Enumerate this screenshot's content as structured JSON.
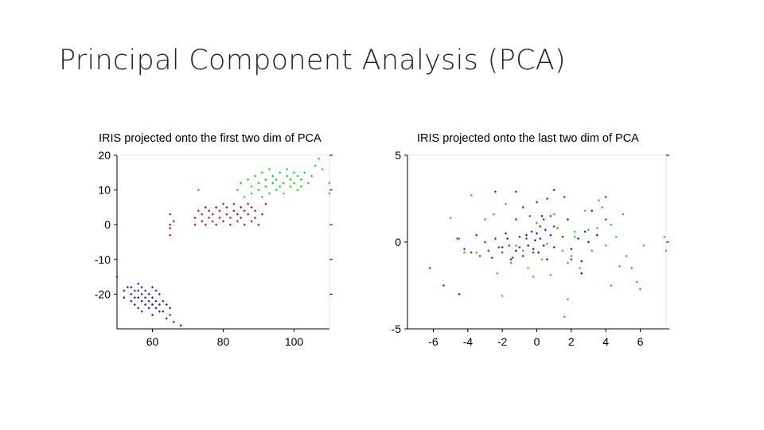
{
  "slide": {
    "title": "Principal Component Analysis (PCA)"
  },
  "colors": {
    "series_blue": "#1f1faa",
    "series_red": "#b41a1a",
    "series_green": "#22cc22",
    "axis": "#000000"
  },
  "chart_data": [
    {
      "type": "scatter",
      "title": "IRIS projected onto the first two dim of PCA",
      "xlabel": "",
      "ylabel": "",
      "xlim": [
        50,
        110
      ],
      "ylim": [
        -30,
        20
      ],
      "xticks": [
        60,
        80,
        100
      ],
      "yticks": [
        20,
        10,
        0,
        -10,
        -20
      ],
      "grid": false,
      "series": [
        {
          "color": "#1f1faa",
          "points": [
            [
              50,
              -15
            ],
            [
              52,
              -19
            ],
            [
              52,
              -21
            ],
            [
              53,
              -18
            ],
            [
              54,
              -18
            ],
            [
              54,
              -20
            ],
            [
              54,
              -22
            ],
            [
              55,
              -21
            ],
            [
              55,
              -19
            ],
            [
              55,
              -23
            ],
            [
              56,
              -17
            ],
            [
              56,
              -19
            ],
            [
              56,
              -21
            ],
            [
              56,
              -24
            ],
            [
              57,
              -18
            ],
            [
              57,
              -20
            ],
            [
              57,
              -22
            ],
            [
              57,
              -25
            ],
            [
              58,
              -19
            ],
            [
              58,
              -21
            ],
            [
              58,
              -23
            ],
            [
              59,
              -20
            ],
            [
              59,
              -22
            ],
            [
              59,
              -24
            ],
            [
              60,
              -18
            ],
            [
              60,
              -21
            ],
            [
              60,
              -23
            ],
            [
              60,
              -26
            ],
            [
              61,
              -19
            ],
            [
              61,
              -22
            ],
            [
              61,
              -24
            ],
            [
              62,
              -20
            ],
            [
              62,
              -23
            ],
            [
              62,
              -25
            ],
            [
              63,
              -22
            ],
            [
              63,
              -25
            ],
            [
              64,
              -23
            ],
            [
              64,
              -27
            ],
            [
              65,
              -24
            ],
            [
              65,
              -26
            ],
            [
              66,
              -28
            ],
            [
              68,
              -29
            ]
          ]
        },
        {
          "color": "#b41a1a",
          "points": [
            [
              65,
              3
            ],
            [
              65,
              0
            ],
            [
              65,
              -1
            ],
            [
              65,
              -3
            ],
            [
              66,
              1
            ],
            [
              72,
              0
            ],
            [
              72,
              2
            ],
            [
              73,
              4
            ],
            [
              74,
              1
            ],
            [
              74,
              3
            ],
            [
              75,
              5
            ],
            [
              75,
              0
            ],
            [
              76,
              2
            ],
            [
              76,
              4
            ],
            [
              77,
              1
            ],
            [
              77,
              3
            ],
            [
              78,
              5
            ],
            [
              78,
              0
            ],
            [
              79,
              2
            ],
            [
              79,
              4
            ],
            [
              80,
              6
            ],
            [
              80,
              1
            ],
            [
              81,
              3
            ],
            [
              81,
              5
            ],
            [
              82,
              2
            ],
            [
              82,
              0
            ],
            [
              83,
              4
            ],
            [
              83,
              6
            ],
            [
              84,
              1
            ],
            [
              84,
              3
            ],
            [
              85,
              5
            ],
            [
              85,
              2
            ],
            [
              86,
              4
            ],
            [
              86,
              0
            ],
            [
              87,
              3
            ],
            [
              87,
              6
            ],
            [
              88,
              1
            ],
            [
              88,
              5
            ],
            [
              89,
              2
            ],
            [
              89,
              4
            ],
            [
              90,
              0
            ],
            [
              91,
              3
            ],
            [
              92,
              6
            ]
          ]
        },
        {
          "color": "#22cc22",
          "points": [
            [
              73,
              10
            ],
            [
              84,
              10
            ],
            [
              85,
              12
            ],
            [
              86,
              8
            ],
            [
              87,
              13
            ],
            [
              88,
              9
            ],
            [
              88,
              11
            ],
            [
              89,
              14
            ],
            [
              90,
              10
            ],
            [
              90,
              12
            ],
            [
              91,
              8
            ],
            [
              91,
              15
            ],
            [
              92,
              11
            ],
            [
              92,
              13
            ],
            [
              93,
              9
            ],
            [
              93,
              16
            ],
            [
              94,
              12
            ],
            [
              94,
              14
            ],
            [
              95,
              10
            ],
            [
              95,
              13
            ],
            [
              96,
              15
            ],
            [
              96,
              11
            ],
            [
              97,
              12
            ],
            [
              97,
              9
            ],
            [
              98,
              14
            ],
            [
              98,
              16
            ],
            [
              99,
              11
            ],
            [
              99,
              13
            ],
            [
              100,
              15
            ],
            [
              100,
              12
            ],
            [
              101,
              10
            ],
            [
              101,
              14
            ],
            [
              102,
              13
            ],
            [
              102,
              11
            ],
            [
              103,
              15
            ],
            [
              104,
              12
            ],
            [
              105,
              14
            ],
            [
              106,
              17
            ],
            [
              107,
              19
            ],
            [
              108,
              16
            ],
            [
              110,
              12
            ],
            [
              110,
              9
            ]
          ]
        }
      ]
    },
    {
      "type": "scatter",
      "title": "IRIS projected onto the last two dim of PCA",
      "xlabel": "",
      "ylabel": "",
      "xlim": [
        -7.5,
        7.5
      ],
      "ylim": [
        -5,
        5
      ],
      "xticks": [
        -6,
        -4,
        -2,
        0,
        2,
        4,
        6
      ],
      "yticks": [
        5,
        0,
        -5
      ],
      "grid": false,
      "series": [
        {
          "color": "#1f1faa",
          "points": [
            [
              -4.5,
              -3.0
            ],
            [
              -2.0,
              -0.3
            ],
            [
              -1.7,
              0.2
            ],
            [
              -1.5,
              -1.0
            ],
            [
              -1.2,
              -0.5
            ],
            [
              -1.0,
              0.3
            ],
            [
              -0.8,
              -0.8
            ],
            [
              -0.6,
              0.4
            ],
            [
              -0.5,
              -0.2
            ],
            [
              -0.3,
              0.6
            ],
            [
              -0.2,
              -0.4
            ],
            [
              -0.1,
              0.1
            ],
            [
              0.0,
              0.5
            ],
            [
              0.1,
              -0.6
            ],
            [
              0.2,
              0.2
            ],
            [
              0.3,
              1.5
            ],
            [
              0.4,
              -0.2
            ],
            [
              0.5,
              0.7
            ],
            [
              0.6,
              -1.0
            ],
            [
              0.8,
              0.4
            ],
            [
              1.0,
              -0.3
            ],
            [
              1.2,
              0.8
            ],
            [
              1.5,
              0.3
            ],
            [
              1.8,
              1.3
            ],
            [
              2.0,
              -0.4
            ],
            [
              2.4,
              0.2
            ],
            [
              2.6,
              -1.1
            ],
            [
              2.8,
              0.6
            ],
            [
              3.0,
              0.0
            ],
            [
              3.5,
              0.4
            ],
            [
              3.2,
              1.8
            ],
            [
              1.0,
              3.0
            ],
            [
              2.6,
              -1.8
            ]
          ]
        },
        {
          "color": "#b41a1a",
          "points": [
            [
              -6.2,
              -1.5
            ],
            [
              -5.4,
              -2.5
            ],
            [
              -4.6,
              0.2
            ],
            [
              -4.2,
              -0.4
            ],
            [
              -3.8,
              -0.6
            ],
            [
              -3.5,
              0.4
            ],
            [
              -3.3,
              -0.8
            ],
            [
              -3.0,
              0.0
            ],
            [
              -2.8,
              -0.5
            ],
            [
              -2.6,
              -0.9
            ],
            [
              -2.4,
              0.2
            ],
            [
              -2.2,
              -0.3
            ],
            [
              -2.0,
              -0.6
            ],
            [
              -1.8,
              0.5
            ],
            [
              -1.6,
              -0.2
            ],
            [
              -1.4,
              -0.9
            ],
            [
              -1.2,
              1.3
            ],
            [
              -1.0,
              -0.3
            ],
            [
              -0.8,
              2.0
            ],
            [
              -0.6,
              0.2
            ],
            [
              -0.4,
              1.5
            ],
            [
              -0.2,
              -0.6
            ],
            [
              0.0,
              2.3
            ],
            [
              0.2,
              0.9
            ],
            [
              0.4,
              1.3
            ],
            [
              0.6,
              2.5
            ],
            [
              0.8,
              1.5
            ],
            [
              1.0,
              0.9
            ],
            [
              -2.4,
              2.9
            ],
            [
              -1.2,
              2.9
            ],
            [
              1.6,
              2.6
            ],
            [
              4.0,
              2.6
            ],
            [
              4.0,
              1.3
            ],
            [
              2.0,
              -1.0
            ]
          ]
        },
        {
          "color": "#22cc22",
          "points": [
            [
              -5.0,
              1.4
            ],
            [
              -4.5,
              0.2
            ],
            [
              -4.2,
              -0.6
            ],
            [
              -3.8,
              2.7
            ],
            [
              -3.5,
              -0.6
            ],
            [
              -3.0,
              1.3
            ],
            [
              -2.5,
              1.6
            ],
            [
              -2.3,
              -1.8
            ],
            [
              -2.0,
              -3.1
            ],
            [
              -1.8,
              2.2
            ],
            [
              -1.5,
              -1.2
            ],
            [
              -1.2,
              -0.2
            ],
            [
              -0.8,
              -0.5
            ],
            [
              -0.5,
              -1.5
            ],
            [
              -0.2,
              -2.0
            ],
            [
              0.0,
              1.1
            ],
            [
              0.3,
              -1.0
            ],
            [
              0.6,
              -0.1
            ],
            [
              0.8,
              -1.9
            ],
            [
              1.0,
              1.6
            ],
            [
              1.2,
              0.8
            ],
            [
              1.5,
              -0.5
            ],
            [
              1.8,
              -1.2
            ],
            [
              2.0,
              -0.8
            ],
            [
              2.2,
              0.3
            ],
            [
              2.5,
              -1.5
            ],
            [
              2.8,
              1.8
            ],
            [
              3.0,
              0.7
            ],
            [
              3.2,
              -0.5
            ],
            [
              3.5,
              0.8
            ],
            [
              3.8,
              2.0
            ],
            [
              4.0,
              -0.2
            ],
            [
              4.3,
              1.0
            ],
            [
              4.6,
              0.3
            ],
            [
              4.8,
              -1.4
            ],
            [
              5.2,
              -0.8
            ],
            [
              5.5,
              -1.5
            ],
            [
              5.8,
              -2.3
            ],
            [
              6.0,
              -2.7
            ],
            [
              6.2,
              -0.2
            ],
            [
              7.5,
              -0.5
            ],
            [
              7.4,
              0.3
            ],
            [
              1.8,
              -3.3
            ],
            [
              2.2,
              0.6
            ],
            [
              1.6,
              -4.3
            ],
            [
              3.6,
              2.4
            ],
            [
              4.3,
              -2.5
            ],
            [
              5.0,
              1.6
            ]
          ]
        }
      ]
    }
  ]
}
